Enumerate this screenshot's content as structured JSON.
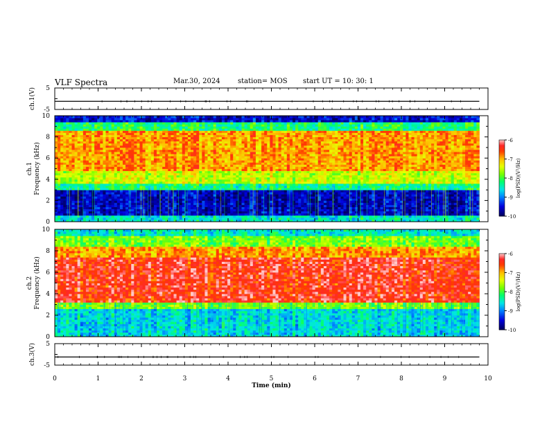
{
  "header": {
    "title": "VLF Spectra",
    "date": "Mar.30, 2024",
    "station": "station= MOS",
    "start": "start  UT =   10: 30: 1"
  },
  "chart_data": [
    {
      "type": "line",
      "panel": "ch.1(V)",
      "ylabel": "ch.1(V)",
      "ylim": [
        -5,
        5
      ],
      "yticks": [
        "5",
        "-5"
      ],
      "x": [
        0,
        9.8
      ],
      "values": [
        -1.2,
        -1.2
      ]
    },
    {
      "type": "heatmap",
      "panel": "ch.1 spectrogram",
      "ylabel": "ch.1\nFrequency (kHz)",
      "ylim": [
        0,
        10
      ],
      "yticks": [
        "0",
        "2",
        "4",
        "6",
        "8",
        "10"
      ],
      "colorbar": {
        "label": "log(PSD)(V²/Hz)",
        "range": [
          -10,
          -6
        ],
        "ticks": [
          "-6",
          "-7",
          "-8",
          "-9",
          "-10"
        ]
      },
      "bands": [
        {
          "f0": 0,
          "f1": 0.5,
          "level": -8.5
        },
        {
          "f0": 0.5,
          "f1": 3.0,
          "level": -9.6
        },
        {
          "f0": 3.0,
          "f1": 3.6,
          "level": -8.3
        },
        {
          "f0": 3.6,
          "f1": 4.8,
          "level": -7.5
        },
        {
          "f0": 4.8,
          "f1": 8.6,
          "level": -6.9
        },
        {
          "f0": 8.6,
          "f1": 9.3,
          "level": -8.2
        },
        {
          "f0": 9.3,
          "f1": 10,
          "level": -9.5
        }
      ]
    },
    {
      "type": "heatmap",
      "panel": "ch.2 spectrogram",
      "ylabel": "ch.2\nFrequency (kHz)",
      "ylim": [
        0,
        10
      ],
      "yticks": [
        "0",
        "2",
        "4",
        "6",
        "8",
        "10"
      ],
      "colorbar": {
        "label": "log(PSD)(V²/Hz)",
        "range": [
          -10,
          -6
        ],
        "ticks": [
          "-6",
          "-7",
          "-8",
          "-9",
          "-10"
        ]
      },
      "bands": [
        {
          "f0": 0,
          "f1": 2.6,
          "level": -8.6
        },
        {
          "f0": 2.6,
          "f1": 3.2,
          "level": -7.8
        },
        {
          "f0": 3.2,
          "f1": 7.4,
          "level": -6.4
        },
        {
          "f0": 7.4,
          "f1": 8.4,
          "level": -6.9
        },
        {
          "f0": 8.4,
          "f1": 9.3,
          "level": -7.8
        },
        {
          "f0": 9.3,
          "f1": 10,
          "level": -8.5
        }
      ]
    },
    {
      "type": "line",
      "panel": "ch.3(V)",
      "ylabel": "ch.3(V)",
      "ylim": [
        -5,
        5
      ],
      "yticks": [
        "5",
        "-5"
      ],
      "x": [
        0,
        9.8
      ],
      "values": [
        -1.2,
        -1.2
      ]
    }
  ],
  "xaxis": {
    "label": "Time (min)",
    "range": [
      0,
      10
    ],
    "ticks": [
      "0",
      "1",
      "2",
      "3",
      "4",
      "5",
      "6",
      "7",
      "8",
      "9",
      "10"
    ]
  },
  "colors": {
    "scale": [
      "#000066",
      "#0000ff",
      "#00c8ff",
      "#00ff66",
      "#c8ff00",
      "#ffff00",
      "#ff8800",
      "#ff0000",
      "#ff9999",
      "#ffffff"
    ]
  }
}
